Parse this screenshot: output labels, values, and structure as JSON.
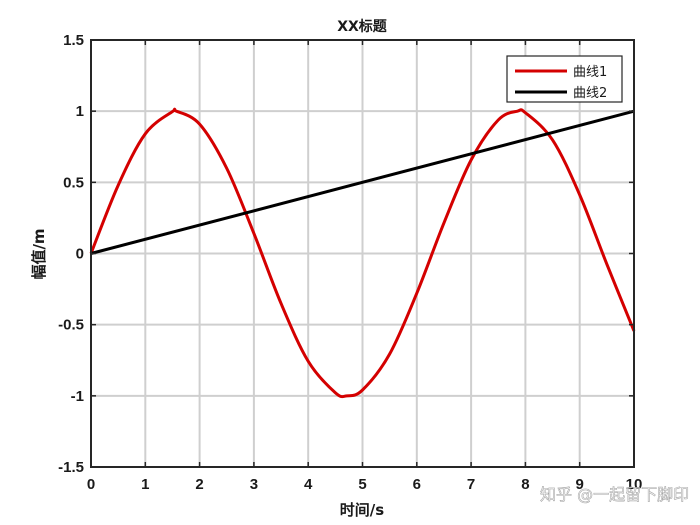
{
  "chart_data": {
    "type": "line",
    "title": "XX标题",
    "xlabel": "时间/s",
    "ylabel": "幅值/m",
    "xlim": [
      0,
      10
    ],
    "ylim": [
      -1.5,
      1.5
    ],
    "xticks": [
      "0",
      "1",
      "2",
      "3",
      "4",
      "5",
      "6",
      "7",
      "8",
      "9",
      "10"
    ],
    "yticks": [
      "-1.5",
      "-1",
      "-0.5",
      "0",
      "0.5",
      "1",
      "1.5"
    ],
    "grid": true,
    "legend_position": "top-right",
    "series": [
      {
        "name": "曲线1",
        "color": "#d40000",
        "x": [
          0,
          0.5,
          1,
          1.5,
          1.5708,
          2,
          2.5,
          3,
          3.5,
          4,
          4.5,
          4.7124,
          5,
          5.5,
          6,
          6.5,
          7,
          7.5,
          7.854,
          8,
          8.5,
          9,
          9.5,
          10
        ],
        "y": [
          0,
          0.479,
          0.841,
          0.997,
          1.0,
          0.909,
          0.598,
          0.141,
          -0.351,
          -0.757,
          -0.978,
          -1.0,
          -0.959,
          -0.706,
          -0.279,
          0.215,
          0.657,
          0.938,
          1.0,
          0.989,
          0.798,
          0.412,
          -0.075,
          -0.544
        ]
      },
      {
        "name": "曲线2",
        "color": "#000000",
        "x": [
          0,
          10
        ],
        "y": [
          0,
          1
        ]
      }
    ]
  },
  "watermark": "知乎 @一起留下脚印"
}
